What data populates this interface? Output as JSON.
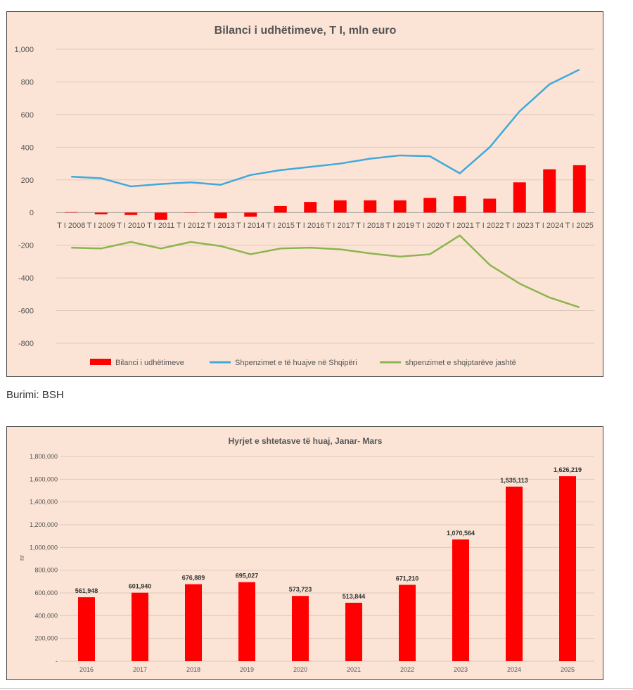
{
  "source_text": "Burimi: BSH",
  "chart_data": [
    {
      "type": "bar+line",
      "title": "Bilanci i udhëtimeve,  T I, mln euro",
      "categories": [
        "T I 2008",
        "T I 2009",
        "T I 2010",
        "T I 2011",
        "T I 2012",
        "T I 2013",
        "T I 2014",
        "T I 2015",
        "T I 2016",
        "T I 2017",
        "T I 2018",
        "T I 2019",
        "T I 2020",
        "T I 2021",
        "T I 2022",
        "T I 2023",
        "T I 2024",
        "T I 2025"
      ],
      "ylim": [
        -800,
        1000
      ],
      "yticks": [
        "1,000",
        "800",
        "600",
        "400",
        "200",
        "0",
        "-200",
        "-400",
        "-600",
        "-800"
      ],
      "series": [
        {
          "name": "Bilanci i udhëtimeve",
          "kind": "bar",
          "color": "#ff0000",
          "values": [
            3,
            -10,
            -15,
            -45,
            0,
            -35,
            -25,
            40,
            65,
            75,
            75,
            75,
            90,
            100,
            85,
            185,
            265,
            290
          ]
        },
        {
          "name": "Shpenzimet e të huajve në Shqipëri",
          "kind": "line",
          "color": "#3fa9dd",
          "values": [
            220,
            210,
            160,
            175,
            185,
            170,
            230,
            260,
            280,
            300,
            330,
            350,
            345,
            240,
            400,
            620,
            785,
            875
          ]
        },
        {
          "name": "shpenzimet e shqiptarëve jashtë",
          "kind": "line",
          "color": "#8cb450",
          "values": [
            -215,
            -220,
            -180,
            -220,
            -180,
            -205,
            -255,
            -220,
            -215,
            -225,
            -250,
            -270,
            -255,
            -140,
            -320,
            -435,
            -520,
            -580
          ]
        }
      ]
    },
    {
      "type": "bar",
      "title": "Hyrjet e shtetasve të huaj, Janar- Mars",
      "ylabel": "nr",
      "categories": [
        "2016",
        "2017",
        "2018",
        "2019",
        "2020",
        "2021",
        "2022",
        "2023",
        "2024",
        "2025"
      ],
      "values": [
        561948,
        601940,
        676889,
        695027,
        573723,
        513844,
        671210,
        1070564,
        1535113,
        1626219
      ],
      "value_labels": [
        "561,948",
        "601,940",
        "676,889",
        "695,027",
        "573,723",
        "513,844",
        "671,210",
        "1,070,564",
        "1,535,113",
        "1,626,219"
      ],
      "ylim": [
        0,
        1800000
      ],
      "yticks": [
        "1,800,000",
        "1,600,000",
        "1,400,000",
        "1,200,000",
        "1,000,000",
        "800,000",
        "600,000",
        "400,000",
        "200,000",
        "-"
      ],
      "color": "#ff0000"
    }
  ]
}
